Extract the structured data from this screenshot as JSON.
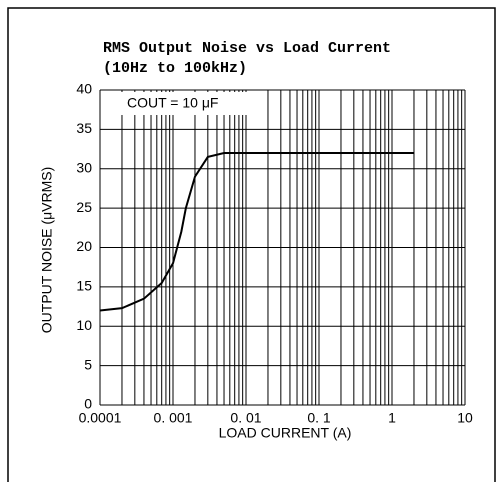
{
  "chart_data": {
    "type": "line",
    "title": "RMS Output Noise vs Load Current",
    "subtitle": "(10Hz to 100kHz)",
    "annotation": "COUT = 10 μF",
    "x_label": "LOAD CURRENT (A)",
    "y_label": "OUTPUT NOISE (μVRMS)",
    "x_scale": "log",
    "grid": true,
    "xlim": [
      0.0001,
      10
    ],
    "ylim": [
      0,
      40
    ],
    "xticks": [
      0.0001,
      {
        "value": 0.001,
        "label": "0. 001"
      },
      {
        "value": 0.01,
        "label": "0. 01"
      },
      {
        "value": 0.1,
        "label": "0. 1"
      },
      1,
      10
    ],
    "yticks": [
      0,
      5,
      10,
      15,
      20,
      25,
      30,
      35,
      40
    ],
    "series": [
      {
        "color": "#000000",
        "x": [
          0.0001,
          0.0002,
          0.0004,
          0.0007,
          0.001,
          0.0013,
          0.0015,
          0.002,
          0.003,
          0.005,
          0.01,
          0.1,
          1,
          2
        ],
        "values": [
          12,
          12.3,
          13.5,
          15.5,
          18,
          22,
          25,
          29,
          31.5,
          32,
          32,
          32,
          32,
          32
        ]
      }
    ]
  }
}
